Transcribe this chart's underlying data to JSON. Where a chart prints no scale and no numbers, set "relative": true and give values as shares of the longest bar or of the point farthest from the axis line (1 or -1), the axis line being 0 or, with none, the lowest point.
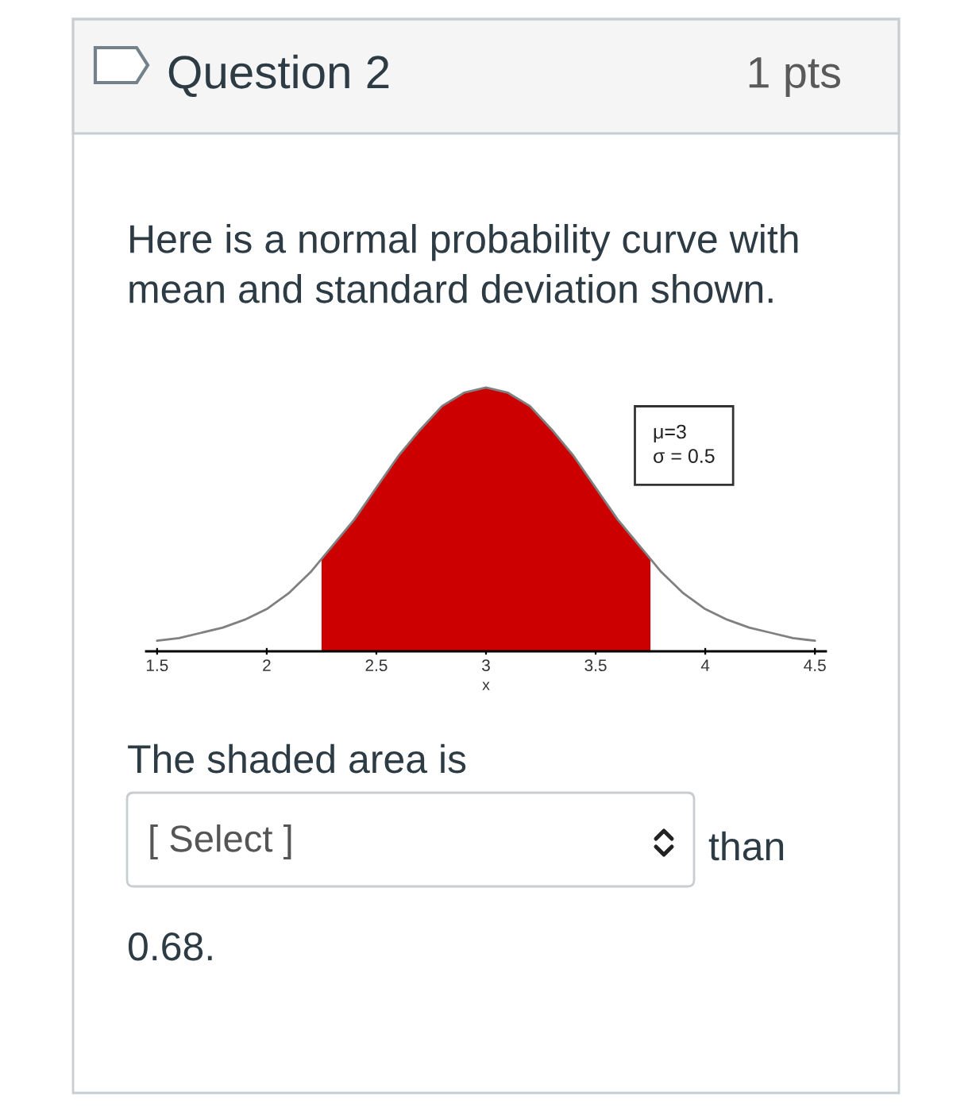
{
  "chart_data": {
    "type": "line",
    "title": "Question 2",
    "subtitle": "Here is a normal probability curve with mean and standard deviation shown.",
    "xlabel": "x",
    "annotations": [
      "1 pts",
      "μ=3\nσ = 0.5",
      "The shaded area is",
      "[ Select ]",
      "than",
      "0.68."
    ],
    "relative": true,
    "xlim": [
      1.45,
      4.55
    ],
    "xticks": [
      1.5,
      2,
      2.5,
      3,
      3.5,
      4,
      4.5
    ],
    "series": [
      {
        "type": "area",
        "color": "#cc0000",
        "x": [
          2.25,
          2.3,
          2.4,
          2.5,
          2.6,
          2.7,
          2.8,
          2.9,
          3.0,
          3.1,
          3.2,
          3.3,
          3.4,
          3.5,
          3.6,
          3.7,
          3.75
        ],
        "values": [
          0.35,
          0.4,
          0.5,
          0.62,
          0.74,
          0.84,
          0.93,
          0.98,
          1.0,
          0.98,
          0.93,
          0.84,
          0.74,
          0.62,
          0.5,
          0.4,
          0.35
        ]
      },
      {
        "color": "#808080",
        "x": [
          1.5,
          1.6,
          1.7,
          1.8,
          1.9,
          2.0,
          2.1,
          2.2,
          2.3,
          2.4,
          2.5,
          2.6,
          2.7,
          2.8,
          2.9,
          3.0,
          3.1,
          3.2,
          3.3,
          3.4,
          3.5,
          3.6,
          3.7,
          3.8,
          3.9,
          4.0,
          4.1,
          4.2,
          4.3,
          4.4,
          4.5
        ],
        "values": [
          0.04,
          0.05,
          0.07,
          0.09,
          0.12,
          0.16,
          0.22,
          0.3,
          0.4,
          0.5,
          0.62,
          0.74,
          0.84,
          0.93,
          0.98,
          1.0,
          0.98,
          0.93,
          0.84,
          0.74,
          0.62,
          0.5,
          0.4,
          0.3,
          0.22,
          0.16,
          0.12,
          0.09,
          0.07,
          0.05,
          0.04
        ]
      }
    ]
  }
}
